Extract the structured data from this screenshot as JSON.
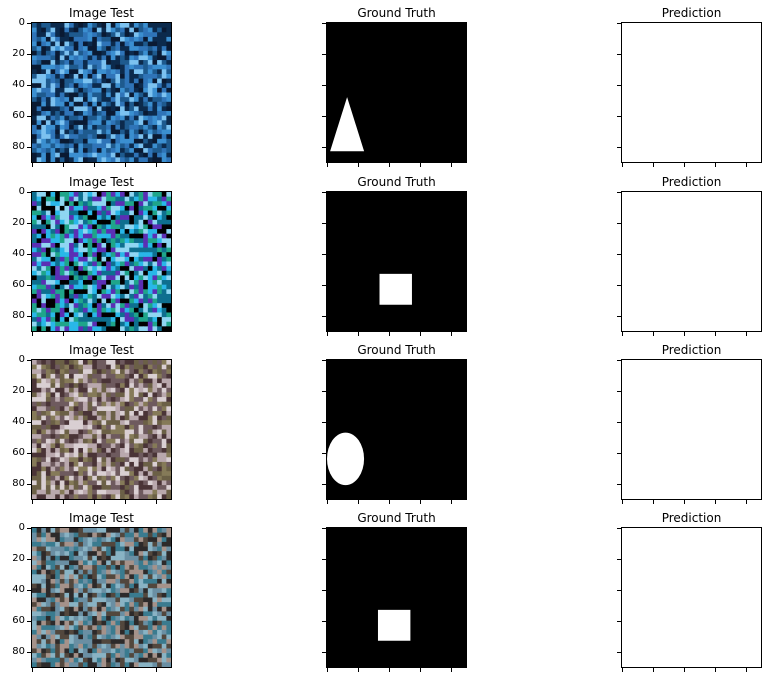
{
  "figure": {
    "rows": [
      {
        "titles": [
          "Image Test",
          "Ground Truth",
          "Prediction"
        ],
        "image_palette": [
          "#0c2a4c",
          "#1e5a8e",
          "#3b8fd0",
          "#7cc2f0",
          "#0a1a33",
          "#2f74b8"
        ],
        "mask_shape": "triangle"
      },
      {
        "titles": [
          "Image Test",
          "Ground Truth",
          "Prediction"
        ],
        "image_palette": [
          "#000000",
          "#0e6f8f",
          "#29b7e8",
          "#1fa58a",
          "#5b2fb5",
          "#8fd6f2"
        ],
        "mask_shape": "square"
      },
      {
        "titles": [
          "Image Test",
          "Ground Truth",
          "Prediction"
        ],
        "image_palette": [
          "#6b6046",
          "#857a58",
          "#b9a8ad",
          "#4a3437",
          "#d9cfd2",
          "#6e5a5e"
        ],
        "mask_shape": "ellipse"
      },
      {
        "titles": [
          "Image Test",
          "Ground Truth",
          "Prediction"
        ],
        "image_palette": [
          "#52473d",
          "#6a8fa3",
          "#3a7b8f",
          "#a5928a",
          "#2d2a2a",
          "#89b3c4"
        ],
        "mask_shape": "square"
      }
    ],
    "y_tick_labels": [
      "0",
      "20",
      "40",
      "60",
      "80"
    ],
    "colors": {
      "mask_background": "#000000",
      "mask_foreground": "#ffffff",
      "prediction": "#ffffff"
    }
  }
}
